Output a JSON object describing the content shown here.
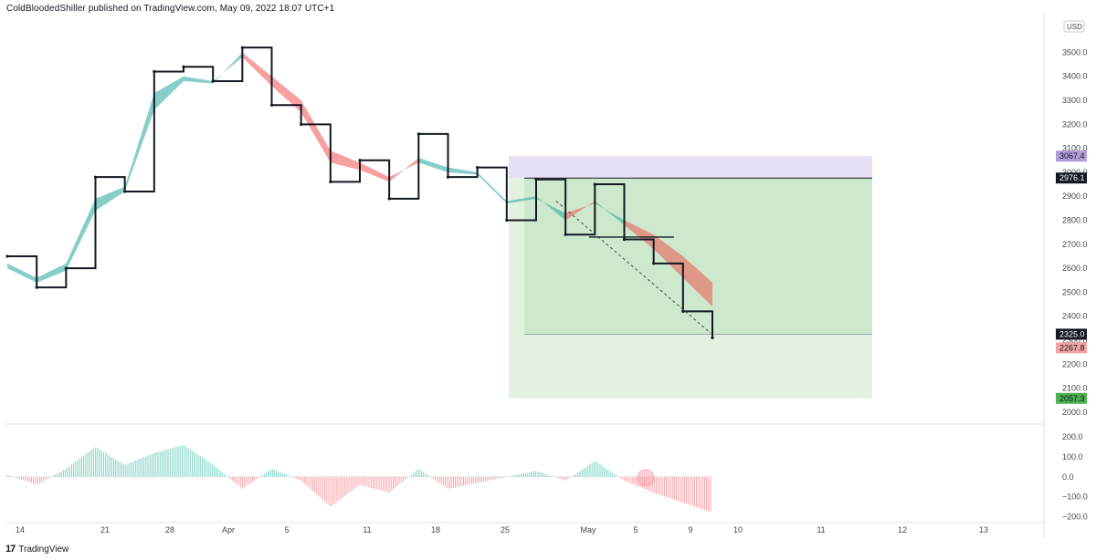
{
  "header": {
    "publisher_line": "ColdBloodedShiller published on TradingView.com, May 09, 2022 18:07 UTC+1"
  },
  "footer": {
    "brand": "TradingView",
    "logo_glyph": "17"
  },
  "chart_data": [
    {
      "type": "line",
      "subtype": "kagi-with-ribbon",
      "currency": "USD",
      "ylim": [
        1950,
        3650
      ],
      "yticks": [
        "3500.0",
        "3400.0",
        "3300.0",
        "3200.0",
        "3100.0",
        "3000.0",
        "2900.0",
        "2800.0",
        "2700.0",
        "2600.0",
        "2500.0",
        "2400.0",
        "2300.0",
        "2200.0",
        "2100.0",
        "2000.0"
      ],
      "xticks": [
        "14",
        "21",
        "28",
        "Apr",
        "5",
        "11",
        "18",
        "25",
        "May",
        "5",
        "9",
        "10",
        "11",
        "12",
        "13"
      ],
      "x": [
        "Mar 12",
        "Mar 14",
        "Mar 17",
        "Mar 21",
        "Mar 24",
        "Mar 28",
        "Mar 31",
        "Apr 3",
        "Apr 6",
        "Apr 9",
        "Apr 12",
        "Apr 15",
        "Apr 18",
        "Apr 21",
        "Apr 23",
        "Apr 25",
        "Apr 27",
        "Apr 29",
        "May 1",
        "May 3",
        "May 4",
        "May 5",
        "May 7",
        "May 8",
        "May 9"
      ],
      "series": [
        {
          "values": [
            2650,
            2520,
            2600,
            2980,
            2920,
            3420,
            3440,
            3380,
            3520,
            3280,
            3200,
            2960,
            3050,
            2890,
            3160,
            2980,
            3020,
            2800,
            2970,
            2740,
            2950,
            2720,
            2620,
            2420,
            2310
          ]
        }
      ],
      "ribbon": {
        "fast": [
          2620,
          2560,
          2620,
          2890,
          2940,
          3330,
          3400,
          3380,
          3480,
          3360,
          3250,
          3040,
          3010,
          2960,
          3060,
          3020,
          3000,
          2880,
          2900,
          2800,
          2880,
          2780,
          2680,
          2560,
          2440
        ],
        "slow": [
          2600,
          2540,
          2590,
          2840,
          2920,
          3260,
          3380,
          3370,
          3500,
          3400,
          3300,
          3090,
          3040,
          2980,
          3040,
          3000,
          2990,
          2870,
          2890,
          2830,
          2870,
          2800,
          2740,
          2650,
          2540
        ],
        "bullish_color": "#26a69a",
        "bearish_color": "#ef5350"
      },
      "price_labels": [
        {
          "text": "3067.4",
          "value": 3067.4,
          "color": "#b39ddb"
        },
        {
          "text": "2976.1",
          "value": 2976.1,
          "color": "#131722"
        },
        {
          "text": "2325.0",
          "value": 2325.0,
          "color": "#131722"
        },
        {
          "text": "2267.8",
          "value": 2267.8,
          "color": "#f5a3a3"
        },
        {
          "text": "2057.3",
          "value": 2057.3,
          "color": "#4caf50"
        }
      ],
      "position_tool": {
        "type": "short",
        "start": "Apr 25",
        "end": "May 13",
        "entry": 2976.1,
        "stop": 3067.4,
        "target1": 2325.0,
        "target2": 2057.3
      }
    },
    {
      "type": "histogram",
      "ylim": [
        -230,
        260
      ],
      "yticks": [
        "200.0",
        "100.0",
        "0.0",
        "−100.0",
        "−200.0"
      ],
      "x": [
        "Mar 12",
        "Mar 14",
        "Mar 17",
        "Mar 21",
        "Mar 24",
        "Mar 28",
        "Mar 31",
        "Apr 3",
        "Apr 6",
        "Apr 9",
        "Apr 12",
        "Apr 15",
        "Apr 18",
        "Apr 21",
        "Apr 23",
        "Apr 25",
        "Apr 27",
        "Apr 29",
        "May 1",
        "May 3",
        "May 4",
        "May 5",
        "May 7",
        "May 8",
        "May 9"
      ],
      "values": [
        10,
        -40,
        40,
        150,
        60,
        120,
        160,
        60,
        -60,
        40,
        -20,
        -150,
        -40,
        -80,
        40,
        -60,
        -30,
        0,
        30,
        -20,
        80,
        -20,
        -80,
        -130,
        -180
      ],
      "positive_color": "#7fd3c4",
      "negative_color": "#f4a3a8"
    }
  ]
}
